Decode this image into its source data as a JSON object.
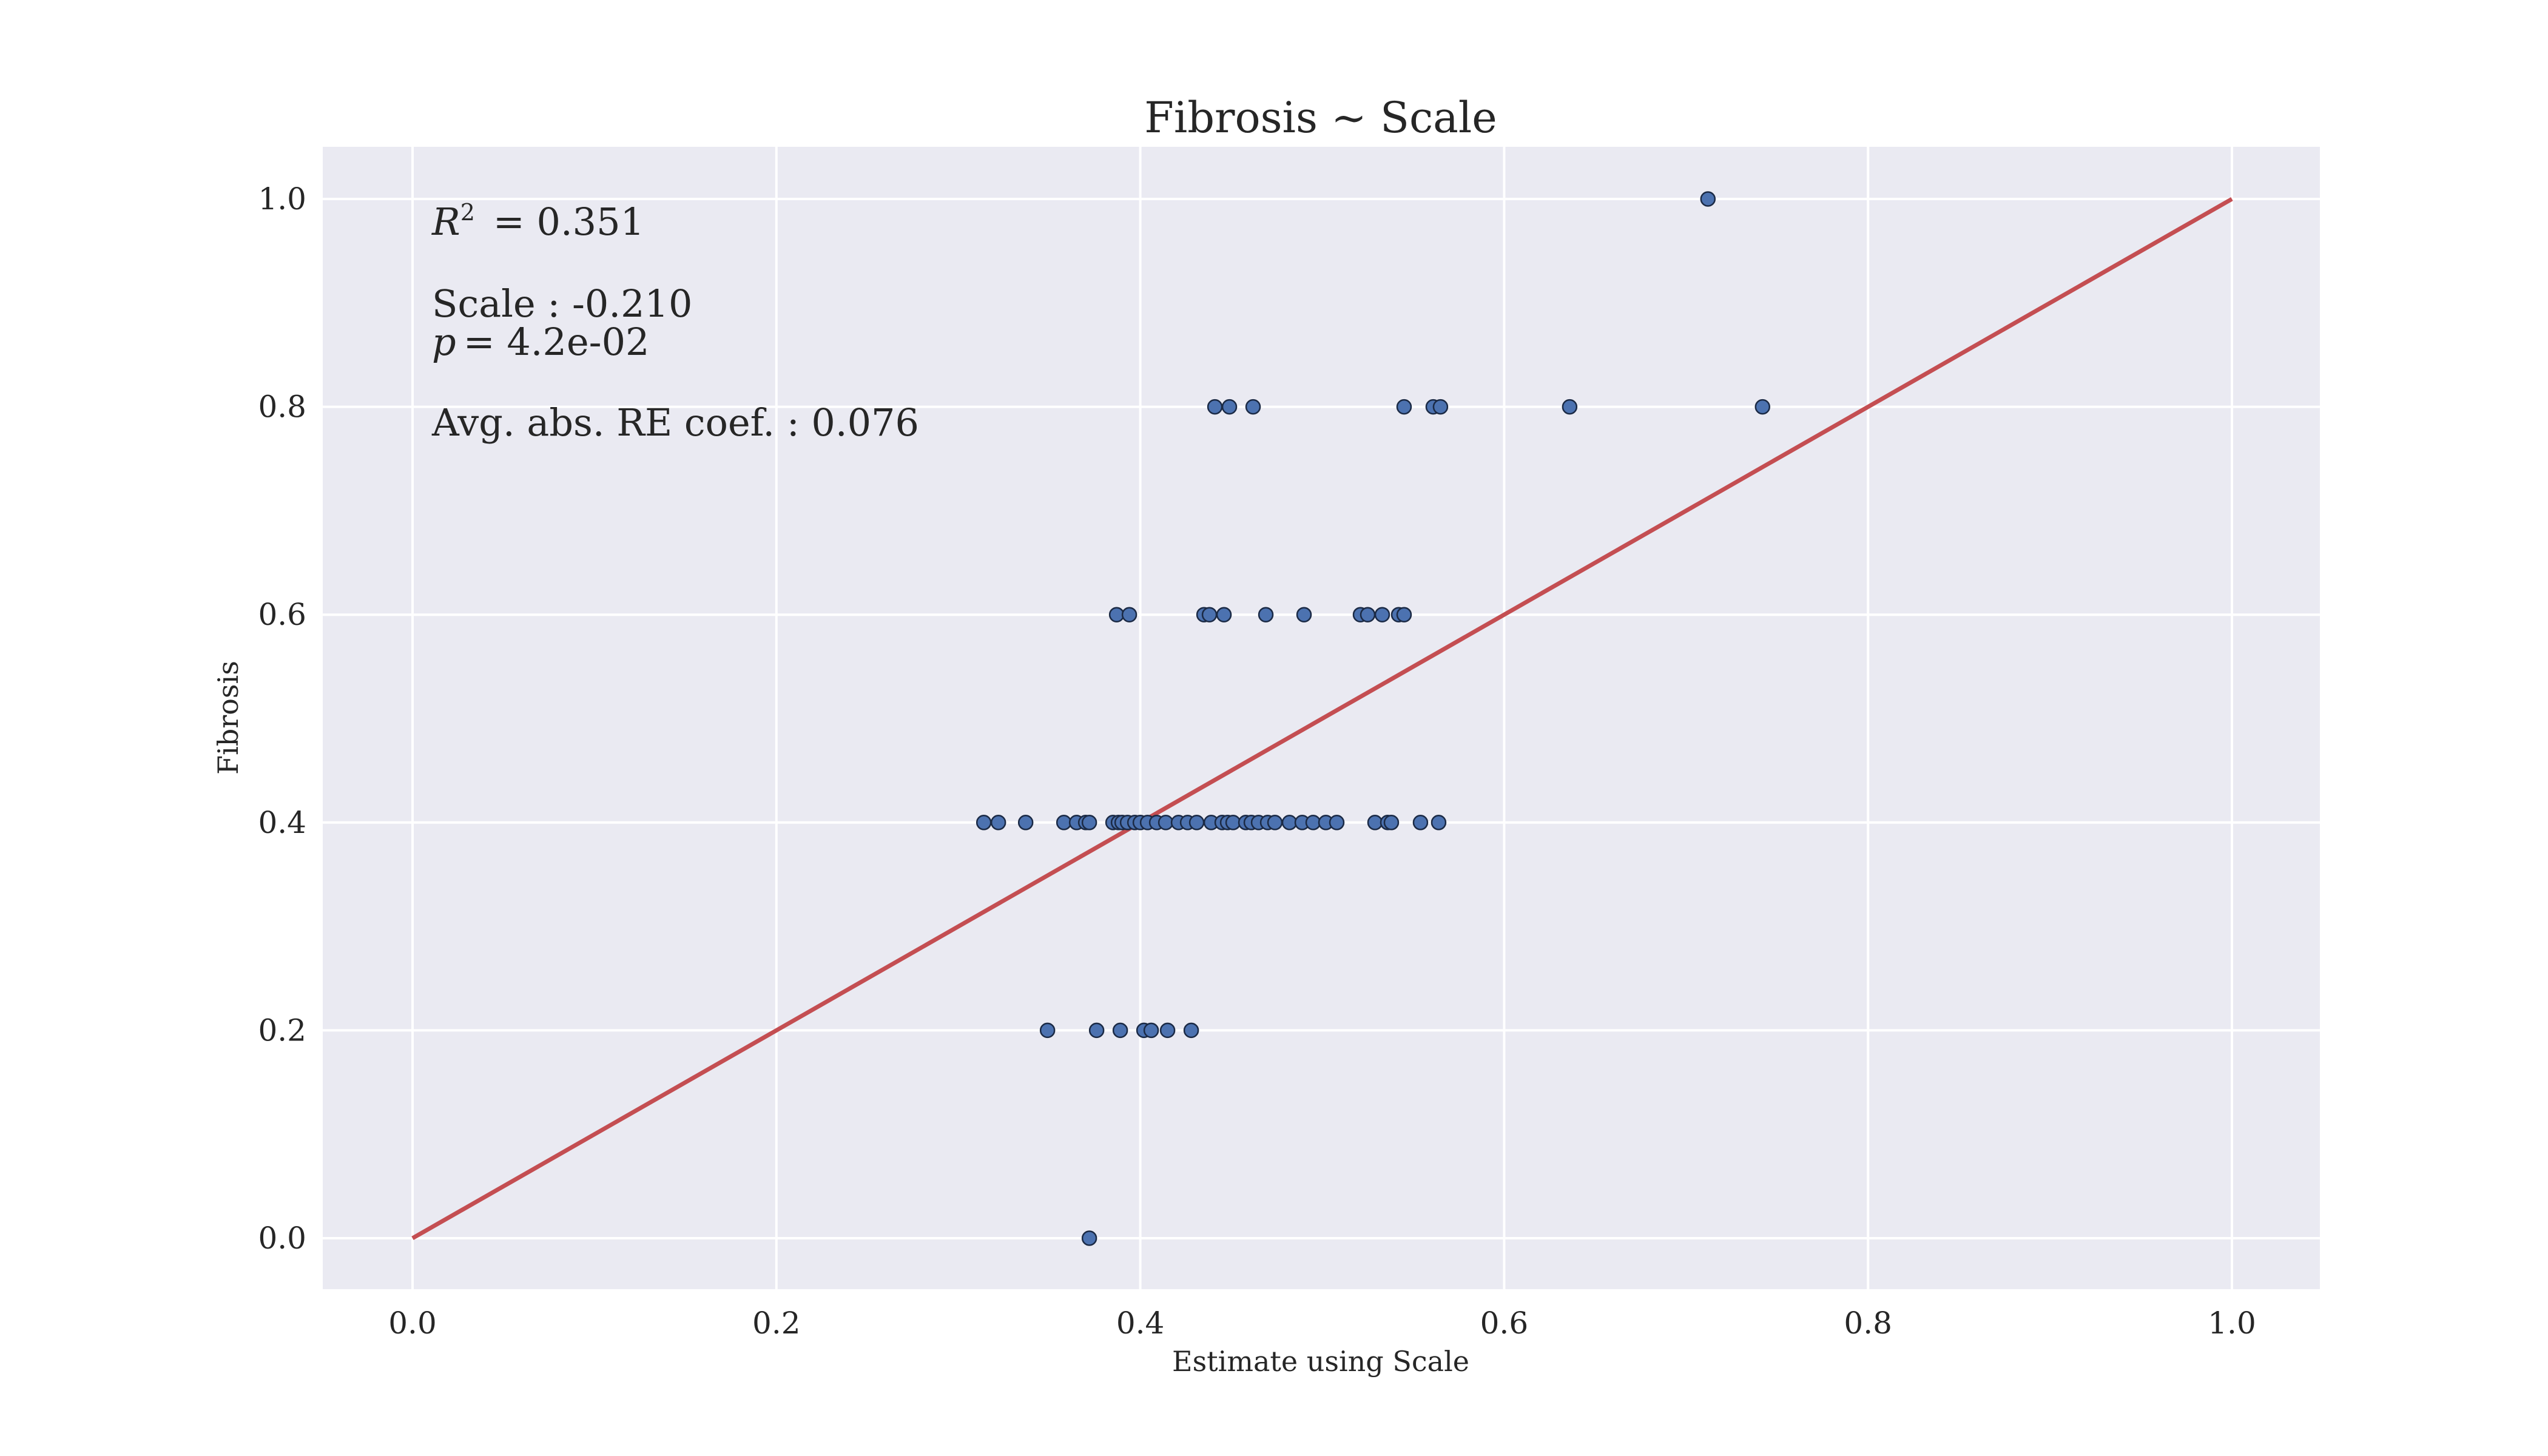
{
  "chart_data": {
    "type": "scatter",
    "title": "Fibrosis ~ Scale",
    "xlabel": "Estimate using Scale",
    "ylabel": "Fibrosis",
    "xlim": [
      -0.05,
      1.05
    ],
    "ylim": [
      -0.05,
      1.05
    ],
    "xticks": [
      "0.0",
      "0.2",
      "0.4",
      "0.6",
      "0.8",
      "1.0"
    ],
    "yticks": [
      "0.0",
      "0.2",
      "0.4",
      "0.6",
      "0.8",
      "1.0"
    ],
    "grid": true,
    "colors": {
      "background": "#eaeaf2",
      "points": "#4c72b0",
      "line": "#c44e52"
    },
    "annotations": {
      "r2_symbol": "R",
      "r2_sup": "2",
      "r2_value": "= 0.351",
      "coef_line": "Scale : -0.210",
      "p_symbol": "p",
      "p_value": "= 4.2e-02",
      "avg_line": "Avg. abs. RE coef. : 0.076"
    },
    "reference_line": {
      "x": [
        0,
        1
      ],
      "y": [
        0,
        1
      ]
    },
    "points": [
      [
        0.372,
        0.0
      ],
      [
        0.349,
        0.2
      ],
      [
        0.376,
        0.2
      ],
      [
        0.389,
        0.2
      ],
      [
        0.402,
        0.2
      ],
      [
        0.406,
        0.2
      ],
      [
        0.415,
        0.2
      ],
      [
        0.428,
        0.2
      ],
      [
        0.314,
        0.4
      ],
      [
        0.322,
        0.4
      ],
      [
        0.337,
        0.4
      ],
      [
        0.358,
        0.4
      ],
      [
        0.365,
        0.4
      ],
      [
        0.37,
        0.4
      ],
      [
        0.372,
        0.4
      ],
      [
        0.385,
        0.4
      ],
      [
        0.388,
        0.4
      ],
      [
        0.39,
        0.4
      ],
      [
        0.393,
        0.4
      ],
      [
        0.397,
        0.4
      ],
      [
        0.4,
        0.4
      ],
      [
        0.404,
        0.4
      ],
      [
        0.409,
        0.4
      ],
      [
        0.414,
        0.4
      ],
      [
        0.421,
        0.4
      ],
      [
        0.426,
        0.4
      ],
      [
        0.431,
        0.4
      ],
      [
        0.439,
        0.4
      ],
      [
        0.445,
        0.4
      ],
      [
        0.448,
        0.4
      ],
      [
        0.451,
        0.4
      ],
      [
        0.458,
        0.4
      ],
      [
        0.461,
        0.4
      ],
      [
        0.465,
        0.4
      ],
      [
        0.47,
        0.4
      ],
      [
        0.474,
        0.4
      ],
      [
        0.482,
        0.4
      ],
      [
        0.489,
        0.4
      ],
      [
        0.495,
        0.4
      ],
      [
        0.502,
        0.4
      ],
      [
        0.508,
        0.4
      ],
      [
        0.529,
        0.4
      ],
      [
        0.536,
        0.4
      ],
      [
        0.538,
        0.4
      ],
      [
        0.554,
        0.4
      ],
      [
        0.564,
        0.4
      ],
      [
        0.387,
        0.6
      ],
      [
        0.394,
        0.6
      ],
      [
        0.435,
        0.6
      ],
      [
        0.438,
        0.6
      ],
      [
        0.446,
        0.6
      ],
      [
        0.469,
        0.6
      ],
      [
        0.49,
        0.6
      ],
      [
        0.521,
        0.6
      ],
      [
        0.525,
        0.6
      ],
      [
        0.533,
        0.6
      ],
      [
        0.542,
        0.6
      ],
      [
        0.545,
        0.6
      ],
      [
        0.441,
        0.8
      ],
      [
        0.449,
        0.8
      ],
      [
        0.462,
        0.8
      ],
      [
        0.545,
        0.8
      ],
      [
        0.561,
        0.8
      ],
      [
        0.565,
        0.8
      ],
      [
        0.636,
        0.8
      ],
      [
        0.742,
        0.8
      ],
      [
        0.712,
        1.0
      ]
    ]
  }
}
